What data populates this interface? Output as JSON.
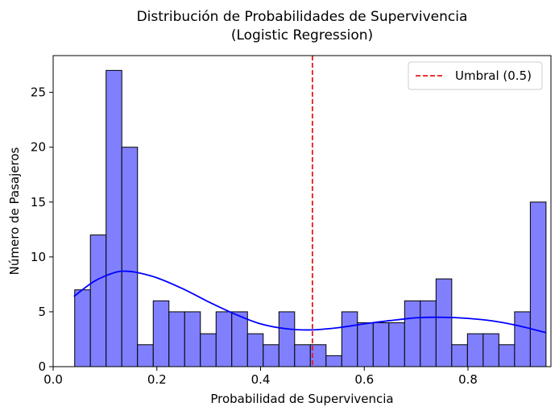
{
  "chart_data": {
    "type": "bar",
    "title": "Distribución de Probabilidades de Supervivencia",
    "subtitle": "(Logistic Regression)",
    "xlabel": "Probabilidad de Supervivencia",
    "ylabel": "Número de Pasajeros",
    "xlim": [
      0.0,
      0.96
    ],
    "ylim": [
      0,
      28.35
    ],
    "x_ticks": [
      0.0,
      0.2,
      0.4,
      0.6,
      0.8
    ],
    "x_tick_labels": [
      "0.0",
      "0.2",
      "0.4",
      "0.6",
      "0.8"
    ],
    "y_ticks": [
      0,
      5,
      10,
      15,
      20,
      25
    ],
    "y_tick_labels": [
      "0",
      "5",
      "10",
      "15",
      "20",
      "25"
    ],
    "grid": false,
    "bins": {
      "start": 0.0415,
      "width": 0.0303,
      "counts": [
        7,
        12,
        27,
        20,
        2,
        6,
        5,
        5,
        3,
        5,
        5,
        3,
        2,
        5,
        2,
        2,
        1,
        5,
        4,
        4,
        4,
        6,
        6,
        8,
        2,
        3,
        3,
        2,
        5,
        15
      ]
    },
    "kde": {
      "x": [
        0.04,
        0.08,
        0.12,
        0.14,
        0.16,
        0.2,
        0.25,
        0.3,
        0.35,
        0.4,
        0.45,
        0.5,
        0.55,
        0.6,
        0.65,
        0.7,
        0.75,
        0.8,
        0.85,
        0.9,
        0.95
      ],
      "y": [
        6.4,
        7.8,
        8.6,
        8.7,
        8.6,
        8.1,
        7.1,
        5.9,
        4.8,
        3.9,
        3.45,
        3.35,
        3.55,
        3.9,
        4.2,
        4.45,
        4.5,
        4.4,
        4.15,
        3.7,
        3.1
      ]
    },
    "threshold": {
      "x": 0.5,
      "label": "Umbral (0.5)"
    },
    "legend": {
      "position": "top-right",
      "entries": [
        "Umbral (0.5)"
      ]
    },
    "colors": {
      "bar_fill": "#8080ff",
      "bar_edge": "#000000",
      "kde_line": "#0000ff",
      "threshold_line": "#e41a1c"
    }
  }
}
